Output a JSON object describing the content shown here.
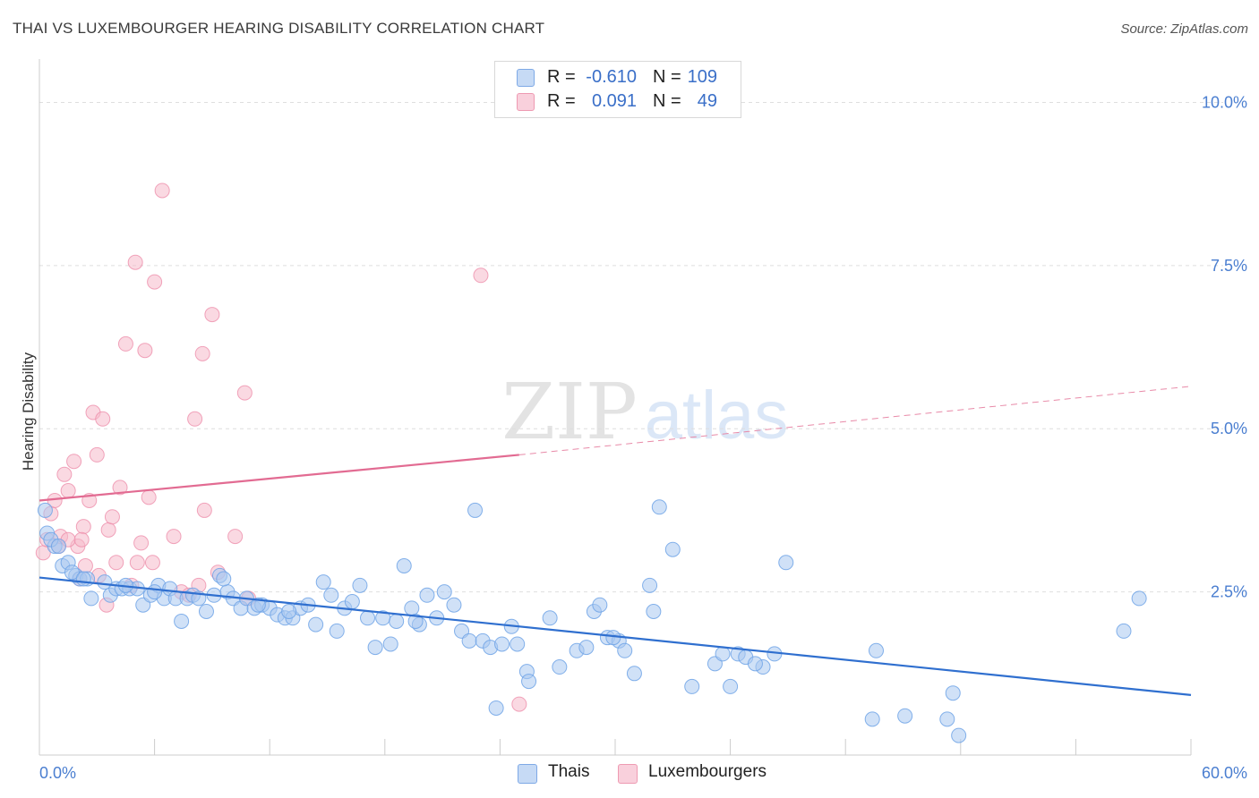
{
  "title": "THAI VS LUXEMBOURGER HEARING DISABILITY CORRELATION CHART",
  "source": "Source: ZipAtlas.com",
  "watermark": "ZIPatlas",
  "legend_top": [
    {
      "r_label": "R =",
      "r_value": "-0.610",
      "n_label": "N =",
      "n_value": "109",
      "color": "#a9c8f0"
    },
    {
      "r_label": "R =",
      "r_value": "0.091",
      "n_label": "N =",
      "n_value": "49",
      "color": "#f6b9cb"
    }
  ],
  "legend_bottom": [
    {
      "label": "Thais",
      "color": "#a9c8f0"
    },
    {
      "label": "Luxembourgers",
      "color": "#f6b9cb"
    }
  ],
  "chart_data": {
    "type": "scatter",
    "title": "THAI VS LUXEMBOURGER HEARING DISABILITY CORRELATION CHART",
    "xlabel": "",
    "ylabel": "Hearing Disability",
    "xlim": [
      0,
      60
    ],
    "ylim": [
      0,
      10.5
    ],
    "x_tick_labels": [
      "0.0%",
      "60.0%"
    ],
    "y_ticks": [
      2.5,
      5.0,
      7.5,
      10.0
    ],
    "y_tick_labels": [
      "2.5%",
      "5.0%",
      "7.5%",
      "10.0%"
    ],
    "grid": "horizontal dashed",
    "legend_position": "top-center",
    "series": [
      {
        "name": "Thais",
        "color": "#6fa3e6",
        "fill": "#a9c8f0",
        "trend": {
          "x0": 0,
          "y0": 2.72,
          "x1": 60,
          "y1": 0.92,
          "style": "solid"
        },
        "points": [
          [
            0.3,
            3.75
          ],
          [
            0.4,
            3.4
          ],
          [
            0.8,
            3.2
          ],
          [
            1.2,
            2.9
          ],
          [
            1.5,
            2.95
          ],
          [
            1.9,
            2.75
          ],
          [
            2.1,
            2.7
          ],
          [
            2.5,
            2.7
          ],
          [
            2.7,
            2.4
          ],
          [
            3.4,
            2.65
          ],
          [
            3.7,
            2.45
          ],
          [
            4.0,
            2.55
          ],
          [
            4.3,
            2.55
          ],
          [
            4.7,
            2.55
          ],
          [
            5.1,
            2.55
          ],
          [
            5.4,
            2.3
          ],
          [
            5.8,
            2.45
          ],
          [
            6.2,
            2.6
          ],
          [
            6.5,
            2.4
          ],
          [
            6.8,
            2.55
          ],
          [
            7.1,
            2.4
          ],
          [
            7.4,
            2.05
          ],
          [
            7.7,
            2.4
          ],
          [
            8.0,
            2.45
          ],
          [
            8.3,
            2.4
          ],
          [
            8.7,
            2.2
          ],
          [
            9.1,
            2.45
          ],
          [
            9.4,
            2.75
          ],
          [
            9.8,
            2.5
          ],
          [
            10.1,
            2.4
          ],
          [
            10.5,
            2.25
          ],
          [
            10.8,
            2.4
          ],
          [
            11.2,
            2.25
          ],
          [
            11.6,
            2.3
          ],
          [
            12.0,
            2.25
          ],
          [
            12.4,
            2.15
          ],
          [
            12.8,
            2.1
          ],
          [
            13.2,
            2.1
          ],
          [
            13.6,
            2.25
          ],
          [
            14.0,
            2.3
          ],
          [
            14.4,
            2.0
          ],
          [
            14.8,
            2.65
          ],
          [
            15.2,
            2.45
          ],
          [
            15.5,
            1.9
          ],
          [
            15.9,
            2.25
          ],
          [
            16.3,
            2.35
          ],
          [
            16.7,
            2.6
          ],
          [
            17.1,
            2.1
          ],
          [
            17.5,
            1.65
          ],
          [
            17.9,
            2.1
          ],
          [
            18.3,
            1.7
          ],
          [
            18.6,
            2.05
          ],
          [
            19.0,
            2.9
          ],
          [
            19.4,
            2.25
          ],
          [
            19.8,
            2.0
          ],
          [
            20.2,
            2.45
          ],
          [
            20.7,
            2.1
          ],
          [
            21.1,
            2.5
          ],
          [
            21.6,
            2.3
          ],
          [
            22.0,
            1.9
          ],
          [
            22.4,
            1.75
          ],
          [
            22.7,
            3.75
          ],
          [
            23.1,
            1.75
          ],
          [
            23.5,
            1.65
          ],
          [
            23.8,
            0.72
          ],
          [
            24.1,
            1.7
          ],
          [
            24.6,
            1.97
          ],
          [
            24.9,
            1.7
          ],
          [
            25.4,
            1.28
          ],
          [
            25.5,
            1.13
          ],
          [
            26.6,
            2.1
          ],
          [
            27.1,
            1.35
          ],
          [
            28.0,
            1.6
          ],
          [
            28.5,
            1.65
          ],
          [
            28.9,
            2.2
          ],
          [
            29.2,
            2.3
          ],
          [
            29.6,
            1.8
          ],
          [
            30.2,
            1.75
          ],
          [
            30.5,
            1.6
          ],
          [
            31.0,
            1.25
          ],
          [
            31.8,
            2.6
          ],
          [
            32.0,
            2.2
          ],
          [
            32.3,
            3.8
          ],
          [
            33.0,
            3.15
          ],
          [
            34.0,
            1.05
          ],
          [
            35.2,
            1.4
          ],
          [
            35.6,
            1.55
          ],
          [
            36.0,
            1.05
          ],
          [
            36.4,
            1.55
          ],
          [
            36.8,
            1.5
          ],
          [
            37.7,
            1.35
          ],
          [
            38.3,
            1.55
          ],
          [
            38.9,
            2.95
          ],
          [
            43.6,
            1.6
          ],
          [
            43.4,
            0.55
          ],
          [
            45.1,
            0.6
          ],
          [
            47.3,
            0.55
          ],
          [
            47.6,
            0.95
          ],
          [
            47.9,
            0.3
          ],
          [
            56.5,
            1.9
          ],
          [
            57.3,
            2.4
          ],
          [
            0.6,
            3.3
          ],
          [
            1.0,
            3.2
          ],
          [
            1.7,
            2.8
          ],
          [
            2.3,
            2.7
          ],
          [
            4.5,
            2.6
          ],
          [
            6.0,
            2.5
          ],
          [
            9.6,
            2.7
          ],
          [
            11.4,
            2.3
          ],
          [
            13.0,
            2.2
          ],
          [
            19.6,
            2.05
          ],
          [
            29.9,
            1.8
          ],
          [
            37.3,
            1.4
          ]
        ]
      },
      {
        "name": "Luxembourgers",
        "color": "#ee8fab",
        "fill": "#f6b9cb",
        "trend": {
          "x0": 0,
          "y0": 3.9,
          "x1": 25,
          "y1": 4.6,
          "x2": 60,
          "y2": 5.65,
          "style": "solid then dashed"
        },
        "points": [
          [
            0.2,
            3.1
          ],
          [
            0.4,
            3.3
          ],
          [
            0.6,
            3.7
          ],
          [
            0.8,
            3.9
          ],
          [
            1.0,
            3.2
          ],
          [
            1.1,
            3.35
          ],
          [
            1.3,
            4.3
          ],
          [
            1.5,
            4.05
          ],
          [
            1.8,
            4.5
          ],
          [
            2.0,
            3.2
          ],
          [
            2.1,
            2.7
          ],
          [
            2.3,
            3.5
          ],
          [
            2.4,
            2.9
          ],
          [
            2.6,
            3.9
          ],
          [
            2.8,
            5.25
          ],
          [
            3.0,
            4.6
          ],
          [
            3.1,
            2.75
          ],
          [
            3.3,
            5.15
          ],
          [
            3.5,
            2.3
          ],
          [
            3.6,
            3.45
          ],
          [
            3.8,
            3.65
          ],
          [
            4.0,
            2.95
          ],
          [
            4.2,
            4.1
          ],
          [
            4.5,
            6.3
          ],
          [
            4.8,
            2.6
          ],
          [
            5.0,
            7.55
          ],
          [
            5.1,
            2.95
          ],
          [
            5.3,
            3.25
          ],
          [
            5.5,
            6.2
          ],
          [
            5.7,
            3.95
          ],
          [
            5.9,
            2.95
          ],
          [
            6.0,
            7.25
          ],
          [
            6.4,
            8.65
          ],
          [
            7.0,
            3.35
          ],
          [
            7.4,
            2.5
          ],
          [
            7.8,
            2.45
          ],
          [
            8.1,
            5.15
          ],
          [
            8.3,
            2.6
          ],
          [
            8.5,
            6.15
          ],
          [
            8.6,
            3.75
          ],
          [
            9.0,
            6.75
          ],
          [
            9.3,
            2.8
          ],
          [
            10.2,
            3.35
          ],
          [
            10.7,
            5.55
          ],
          [
            10.9,
            2.4
          ],
          [
            23.0,
            7.35
          ],
          [
            25.0,
            0.78
          ],
          [
            1.5,
            3.3
          ],
          [
            2.2,
            3.3
          ]
        ]
      }
    ]
  }
}
